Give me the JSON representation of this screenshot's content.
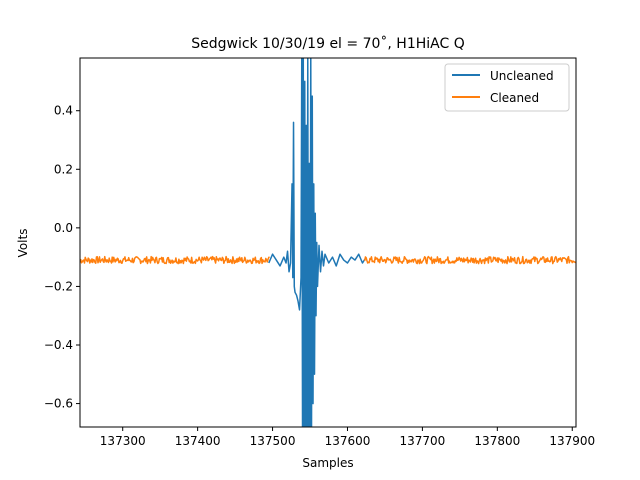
{
  "chart_data": {
    "type": "line",
    "title": "Sedgwick 10/30/19 el = 70˚, H1HiAC Q",
    "xlabel": "Samples",
    "ylabel": "Volts",
    "xlim": [
      137243,
      137905
    ],
    "ylim": [
      -0.68,
      0.58
    ],
    "x_ticks": [
      137300,
      137400,
      137500,
      137600,
      137700,
      137800,
      137900
    ],
    "x_tick_labels": [
      "137300",
      "137400",
      "137500",
      "137600",
      "137700",
      "137800",
      "137900"
    ],
    "y_ticks": [
      -0.6,
      -0.4,
      -0.2,
      0.0,
      0.2,
      0.4
    ],
    "y_tick_labels": [
      "−0.6",
      "−0.4",
      "−0.2",
      "0.0",
      "0.2",
      "0.4"
    ],
    "grid": false,
    "legend_position": "upper right",
    "series": [
      {
        "name": "Uncleaned",
        "color": "#1f77b4",
        "segments": [
          {
            "x": [
              137495,
              137500,
              137505,
              137510,
              137515,
              137518,
              137520,
              137522,
              137524,
              137526,
              137527,
              137528,
              137529,
              137530,
              137532,
              137534,
              137536,
              137538,
              137539,
              137540,
              137541,
              137542,
              137543,
              137544,
              137545,
              137546,
              137547,
              137548,
              137549,
              137550,
              137551,
              137552,
              137553,
              137554,
              137555,
              137556,
              137557,
              137558,
              137559,
              137560,
              137562,
              137564,
              137566,
              137568,
              137570,
              137575,
              137580,
              137585,
              137590,
              137595,
              137600,
              137605,
              137610,
              137615,
              137620,
              137625
            ],
            "y": [
              -0.12,
              -0.09,
              -0.11,
              -0.13,
              -0.1,
              -0.12,
              -0.08,
              -0.15,
              -0.12,
              0.15,
              -0.17,
              0.36,
              -0.2,
              -0.22,
              -0.23,
              -0.25,
              -0.28,
              -0.17,
              0.6,
              -0.7,
              0.6,
              -0.7,
              0.5,
              -0.7,
              0.35,
              -0.7,
              0.58,
              -0.7,
              0.22,
              -0.7,
              0.6,
              -0.7,
              0.45,
              -0.6,
              0.15,
              -0.5,
              0.05,
              -0.3,
              -0.05,
              -0.2,
              -0.06,
              -0.15,
              -0.08,
              -0.13,
              -0.09,
              -0.12,
              -0.1,
              -0.13,
              -0.09,
              -0.11,
              -0.12,
              -0.1,
              -0.11,
              -0.09,
              -0.12,
              -0.1
            ]
          }
        ]
      },
      {
        "name": "Cleaned",
        "color": "#ff7f0e",
        "segments": [
          {
            "x_range": [
              137243,
              137496
            ],
            "baseline": -0.11,
            "noise": 0.012
          },
          {
            "x_range": [
              137623,
              137905
            ],
            "baseline": -0.11,
            "noise": 0.012
          }
        ]
      }
    ]
  }
}
